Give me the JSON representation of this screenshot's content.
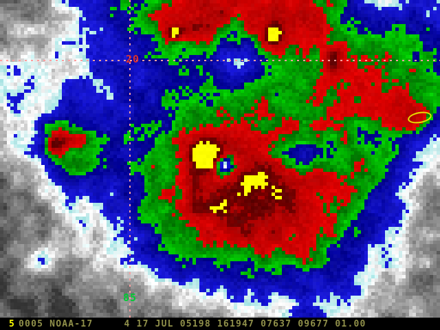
{
  "grid": {
    "latitude_label": "20",
    "longitude_label": "85",
    "latitude_label_color": "#d93030",
    "longitude_label_color": "#00cc33",
    "line_color": "#ff9f9f"
  },
  "status_bar": {
    "prefix": "5",
    "prefix_color": "#ffff00",
    "annotation": "0005 NOAA-17     4 17 JUL 05198 161947 07637 09677 01.00",
    "text_color": "#90904a",
    "background": "#000000"
  },
  "marker": {
    "shape": "yellow-ellipse-outline",
    "color": "#e6e600"
  },
  "palette": {
    "sea_gray_dark": "#383838",
    "cloud_gray": "#a8a8a8",
    "cloud_white": "#ffffff",
    "enh_cyan": "#a0e2e2",
    "enh_blue": "#1a1ae0",
    "enh_blue_dark": "#000088",
    "enh_green": "#00d400",
    "enh_green_dark": "#007000",
    "enh_red": "#e60000",
    "enh_red_dark": "#a50000",
    "enh_darkred": "#800000",
    "enh_darkred_dark": "#560000",
    "enh_yellow": "#ffff00"
  }
}
